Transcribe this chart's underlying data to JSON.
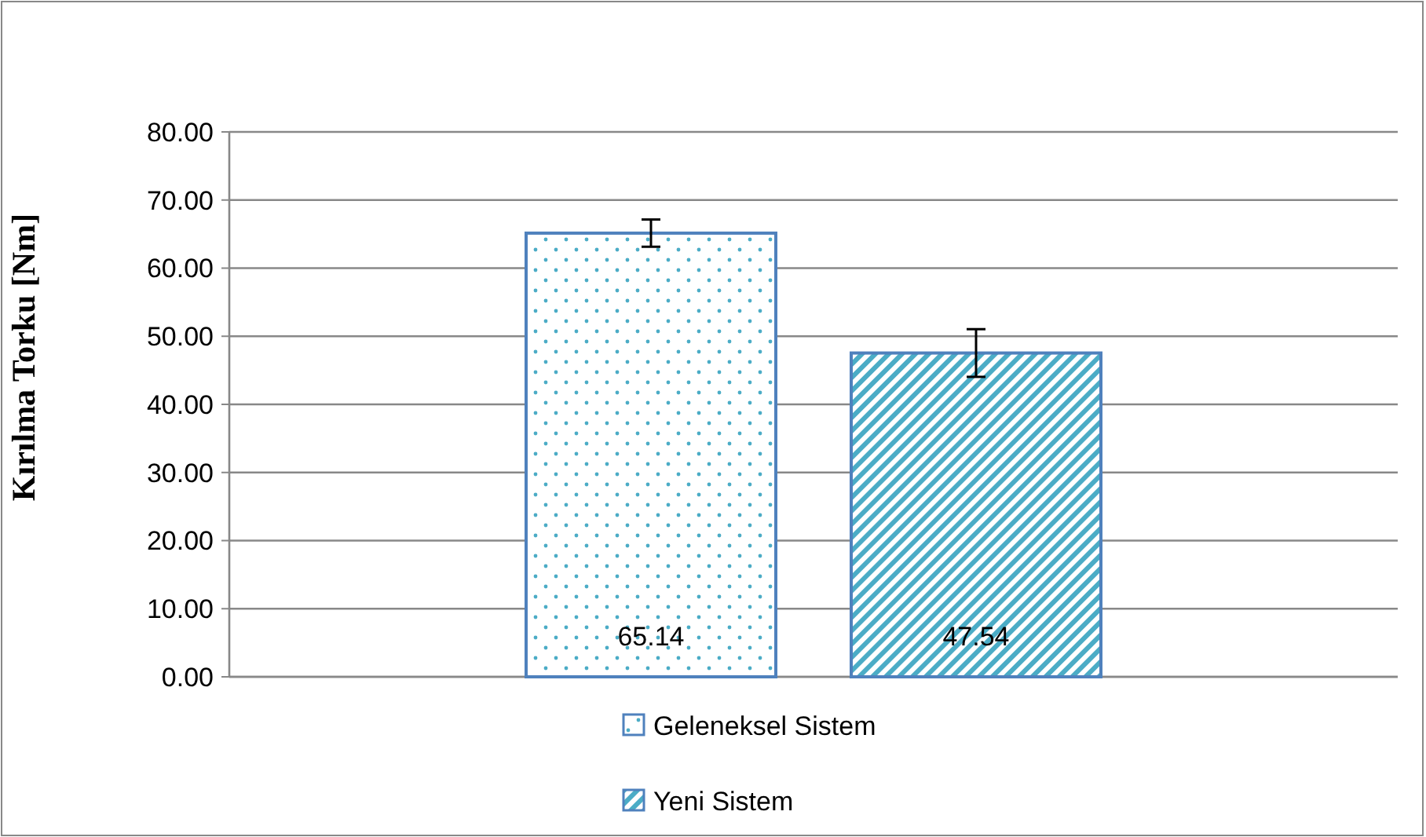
{
  "chart_data": {
    "type": "bar",
    "ylabel": "Kırılma Torku [Nm]",
    "categories": [
      null
    ],
    "series": [
      {
        "name": "Geleneksel Sistem",
        "color": "#4f81bd",
        "values": [
          65.14
        ],
        "errors": [
          2
        ]
      },
      {
        "name": "Yeni Sistem",
        "color": "#4f81bd",
        "values": [
          47.54
        ],
        "errors": [
          3.5
        ]
      }
    ],
    "ylim": [
      0,
      80
    ],
    "yticks": [
      {
        "value": 0,
        "label": "0.00"
      },
      {
        "value": 10,
        "label": "10.00"
      },
      {
        "value": 20,
        "label": "20.00"
      },
      {
        "value": 30,
        "label": "30.00"
      },
      {
        "value": 40,
        "label": "40.00"
      },
      {
        "value": 50,
        "label": "50.00"
      },
      {
        "value": 60,
        "label": "60.00"
      },
      {
        "value": 70,
        "label": "70.00"
      },
      {
        "value": 80,
        "label": "80.00"
      }
    ],
    "grid": "y",
    "legend": "bottom",
    "data_labels": true
  }
}
